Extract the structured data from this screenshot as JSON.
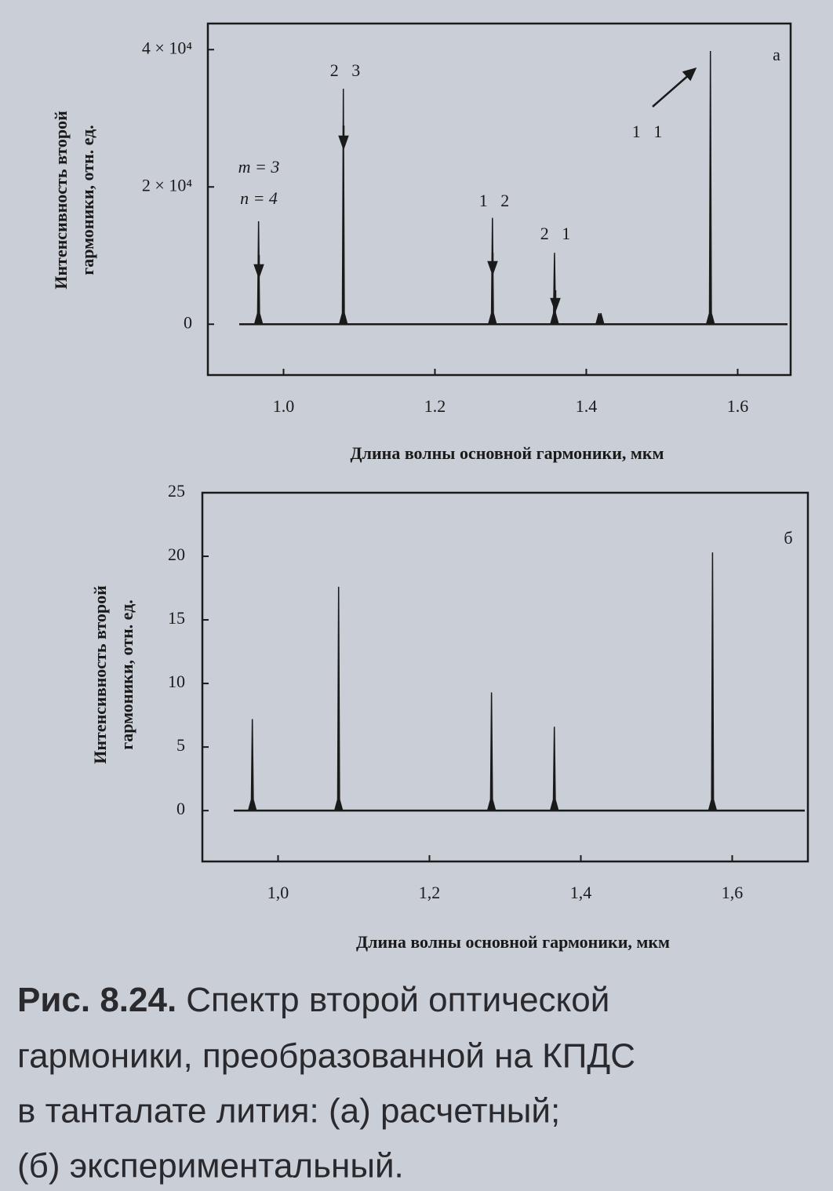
{
  "chart_data": [
    {
      "type": "stem",
      "panel_label": "а",
      "ylabel": [
        "Интенсивность второй",
        "гармоники, отн. ед."
      ],
      "xlabel": "Длина волны основной гармоники, мкм",
      "x": [
        0.967,
        1.079,
        1.276,
        1.358,
        1.418,
        1.564
      ],
      "values": [
        15000,
        34300,
        15500,
        10400,
        900,
        39800
      ],
      "color": "#1a1a1a",
      "xlim": [
        0.9,
        1.67
      ],
      "ylim": [
        -7400,
        43800
      ],
      "xticks": [
        {
          "value": 1.0,
          "label": "1.0"
        },
        1.2,
        1.4,
        1.6
      ],
      "yticks": [
        0,
        {
          "value": 20000,
          "label": "2 × 10⁴"
        },
        {
          "value": 40000,
          "label": "4 × 10⁴"
        }
      ],
      "annotations": [
        "m = 3",
        "n = 4",
        "2   3",
        "1   2",
        "2   1",
        "1   1"
      ]
    },
    {
      "type": "stem",
      "panel_label": "б",
      "ylabel": [
        "Интенсивность второй",
        "гармоники, отн. ед."
      ],
      "xlabel": "Длина волны основной гармоники, мкм",
      "x": [
        0.966,
        1.08,
        1.282,
        1.365,
        1.574
      ],
      "values": [
        7.2,
        17.6,
        9.3,
        6.6,
        20.3
      ],
      "color": "#1a1a1a",
      "xlim": [
        0.9,
        1.7
      ],
      "ylim": [
        -4,
        25
      ],
      "xticks": [
        {
          "value": 1.0,
          "label": "1,0"
        },
        {
          "value": 1.2,
          "label": "1,2"
        },
        {
          "value": 1.4,
          "label": "1,4"
        },
        {
          "value": 1.6,
          "label": "1,6"
        }
      ],
      "yticks": [
        0,
        5,
        10,
        15,
        20,
        25
      ]
    }
  ],
  "caption": {
    "label": "Рис. 8.24.",
    "lines": [
      "Спектр второй оптической",
      "гармоники, преобразованной на КПДС",
      "в танталате лития: (а) расчетный;",
      "(б) экспериментальный."
    ]
  }
}
